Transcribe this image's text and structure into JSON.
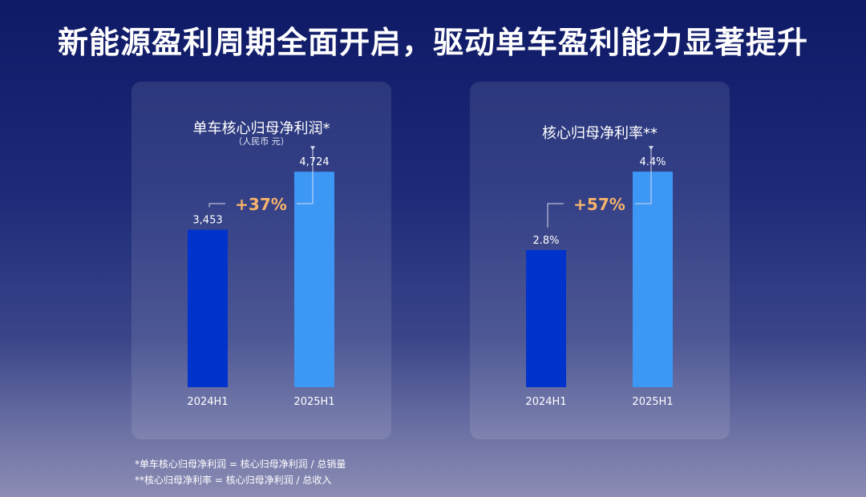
{
  "title": "新能源盈利周期全面开启，驱动单车盈利能力显著提升",
  "chart_data": [
    {
      "type": "bar",
      "title": "单车核心归母净利润*",
      "subtitle": "（人民币 元）",
      "categories": [
        "2024H1",
        "2025H1"
      ],
      "values": [
        3453,
        4724
      ],
      "value_labels": [
        "3,453",
        "4,724"
      ],
      "growth_label": "+37%",
      "bar_colors": [
        "#0033cc",
        "#3d97f5"
      ],
      "ylim": [
        0,
        5800
      ]
    },
    {
      "type": "bar",
      "title": "核心归母净利率**",
      "categories": [
        "2024H1",
        "2025H1"
      ],
      "values": [
        2.8,
        4.4
      ],
      "value_labels": [
        "2.8%",
        "4.4%"
      ],
      "growth_label": "+57%",
      "bar_colors": [
        "#0033cc",
        "#3d97f5"
      ],
      "ylim": [
        0,
        5.4
      ]
    }
  ],
  "footnotes": [
    "*单车核心归母净利润 = 核心归母净利润 / 总销量",
    "**核心归母净利率 = 核心归母净利润 / 总收入"
  ],
  "colors": {
    "growth": "#f7b36b",
    "connector": "#d7dbee"
  }
}
